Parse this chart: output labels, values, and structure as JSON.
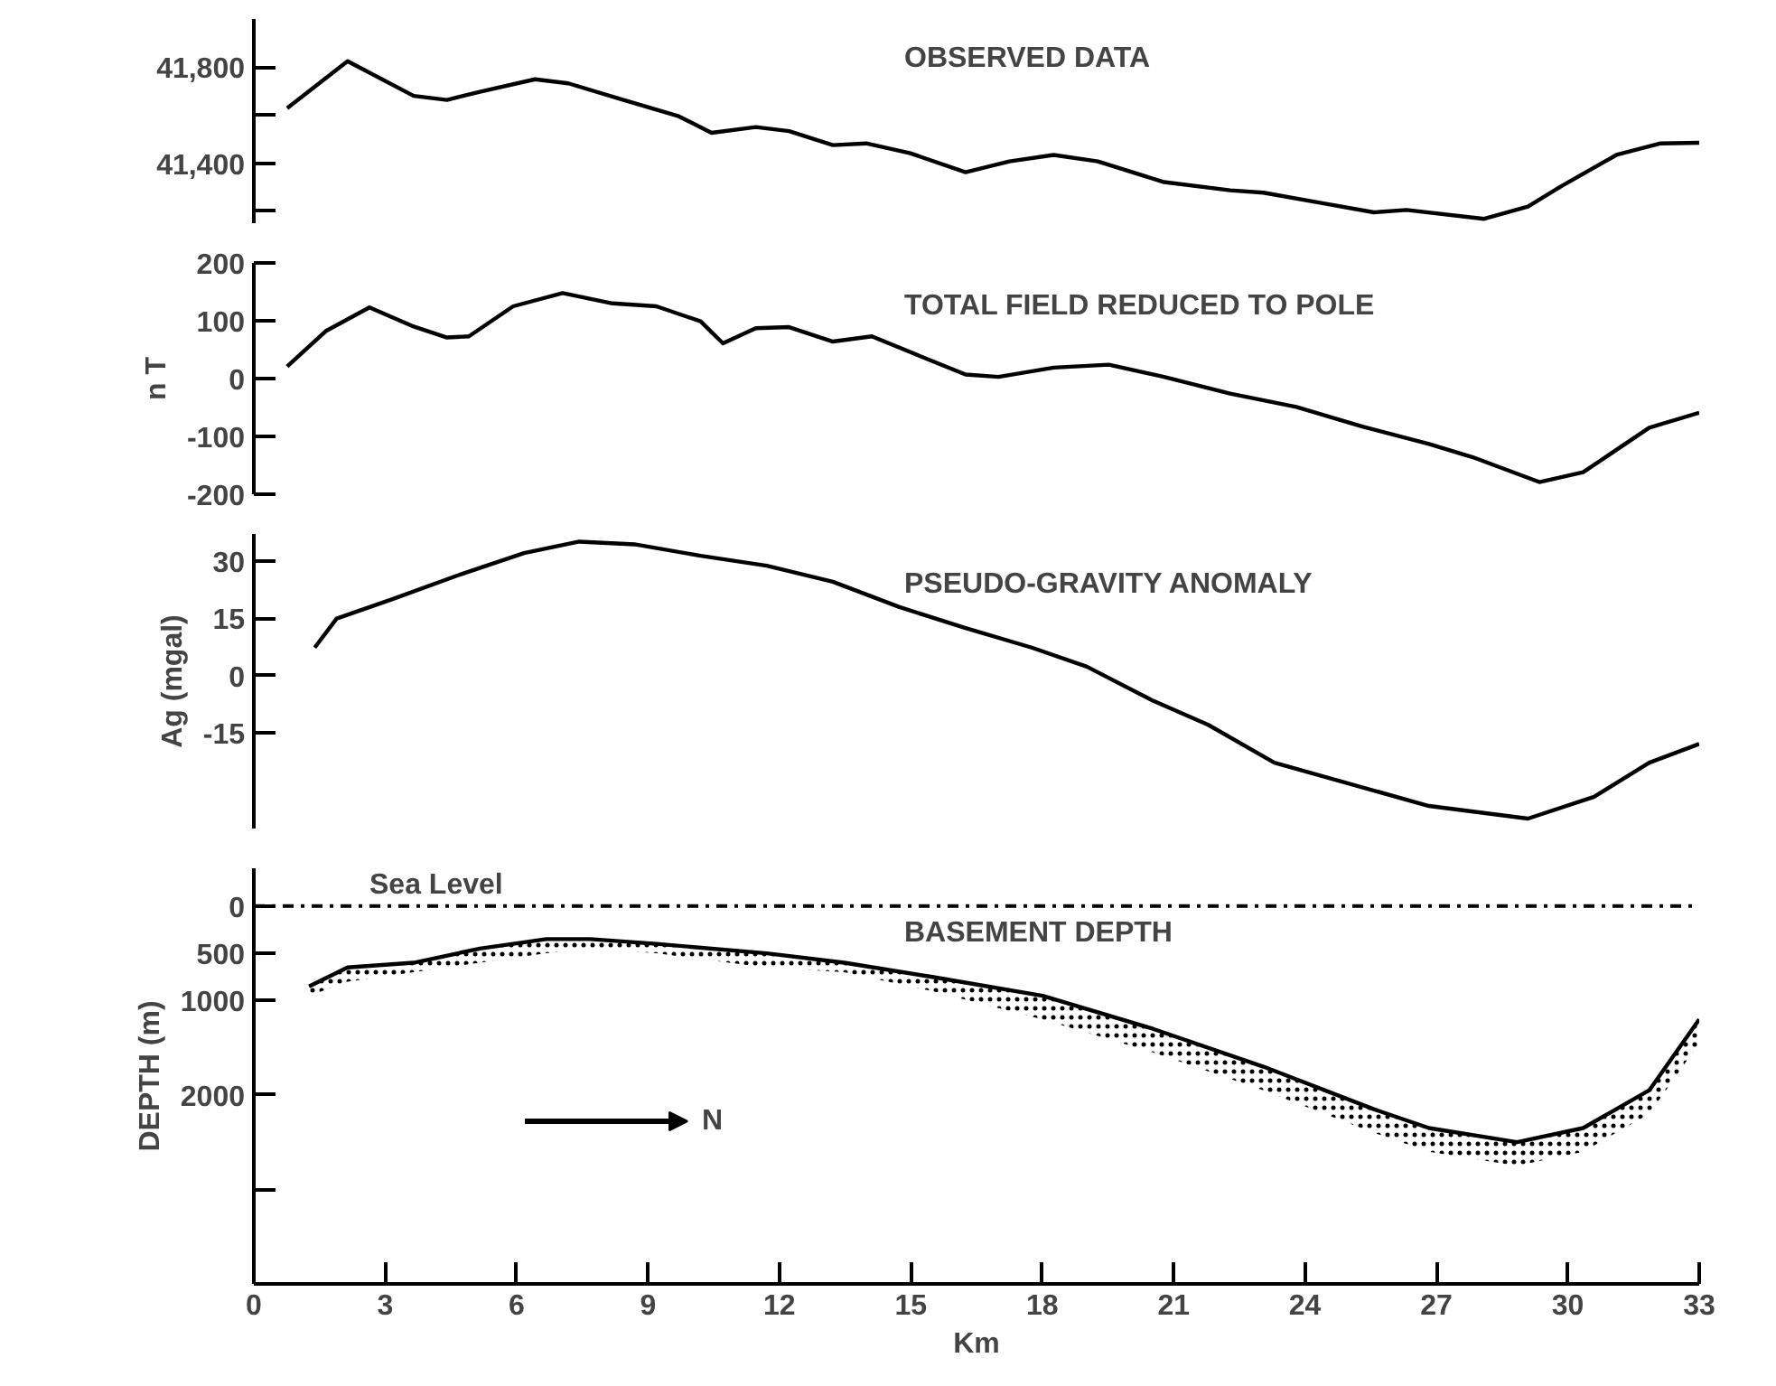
{
  "chart_data": [
    {
      "type": "line",
      "title": "OBSERVED DATA",
      "xlim": [
        0,
        33
      ],
      "xticks": [
        0,
        3,
        6,
        9,
        12,
        15,
        18,
        21,
        24,
        27,
        30,
        33
      ],
      "ylim": [
        41150,
        42000
      ],
      "yticks": [
        {
          "value": 41200,
          "label": null
        },
        {
          "value": 41400,
          "label": "41,400"
        },
        {
          "value": 41600,
          "label": null
        },
        {
          "value": 41800,
          "label": "41,800"
        }
      ],
      "tick_labels": "y",
      "grid": false,
      "series": [
        {
          "color": "#000000",
          "x": [
            0.76,
            2.14,
            3.65,
            4.41,
            5.16,
            6.42,
            7.18,
            8.44,
            9.7,
            10.45,
            11.46,
            12.22,
            13.22,
            13.98,
            14.99,
            16.25,
            17.25,
            18.26,
            19.27,
            20.78,
            22.29,
            23.05,
            24.31,
            25.57,
            26.32,
            28.09,
            29.09,
            29.85,
            31.11,
            32.12,
            33.0
          ],
          "values": [
            41629,
            41824,
            41680,
            41663,
            41697,
            41749,
            41732,
            41663,
            41595,
            41526,
            41550,
            41533,
            41475,
            41482,
            41441,
            41362,
            41407,
            41434,
            41407,
            41321,
            41287,
            41277,
            41236,
            41195,
            41205,
            41168,
            41219,
            41304,
            41434,
            41482,
            41485
          ]
        }
      ]
    },
    {
      "type": "line",
      "title": "TOTAL FIELD REDUCED TO POLE",
      "ylabel": "n T",
      "xlim": [
        0,
        33
      ],
      "xticks": [
        0,
        3,
        6,
        9,
        12,
        15,
        18,
        21,
        24,
        27,
        30,
        33
      ],
      "ylim": [
        -200,
        200
      ],
      "yticks": [
        -200,
        -100,
        0,
        100,
        200
      ],
      "tick_labels": "y",
      "grid": false,
      "series": [
        {
          "color": "#000000",
          "x": [
            0.76,
            1.64,
            2.64,
            3.65,
            4.41,
            4.91,
            5.92,
            7.05,
            8.19,
            9.19,
            10.2,
            10.71,
            11.46,
            12.22,
            13.22,
            14.11,
            15.24,
            16.25,
            17.0,
            18.26,
            19.52,
            20.78,
            22.29,
            23.8,
            25.31,
            26.83,
            27.83,
            29.35,
            30.35,
            31.86,
            33.0
          ],
          "values": [
            21,
            82,
            123,
            90,
            71,
            73,
            125,
            148,
            130,
            125,
            99,
            61,
            87,
            89,
            64,
            73,
            38,
            7,
            3,
            19,
            24,
            3,
            -26,
            -49,
            -83,
            -113,
            -136,
            -179,
            -162,
            -85,
            -59
          ]
        }
      ]
    },
    {
      "type": "line",
      "title": "PSEUDO-GRAVITY ANOMALY",
      "ylabel": "Ag (mgal)",
      "xlim": [
        0,
        33
      ],
      "xticks": [
        0,
        3,
        6,
        9,
        12,
        15,
        18,
        21,
        24,
        27,
        30,
        33
      ],
      "ylim": [
        -40,
        37
      ],
      "yticks": [
        -15,
        0,
        15,
        30
      ],
      "tick_labels": "y",
      "grid": false,
      "series": [
        {
          "color": "#000000",
          "x": [
            1.39,
            1.89,
            3.15,
            4.66,
            6.17,
            7.43,
            8.69,
            10.2,
            11.71,
            13.22,
            14.74,
            16.25,
            17.76,
            19.02,
            20.53,
            21.79,
            23.3,
            26.83,
            29.09,
            30.6,
            31.86,
            33.0
          ],
          "values": [
            7.3,
            14.9,
            19.9,
            26.2,
            32.0,
            35.0,
            34.3,
            31.3,
            28.7,
            24.5,
            17.9,
            12.4,
            7.3,
            2.3,
            -6.6,
            -12.9,
            -22.8,
            -34.1,
            -37.4,
            -31.7,
            -22.8,
            -17.9
          ]
        }
      ]
    },
    {
      "type": "line",
      "title": "BASEMENT DEPTH",
      "ylabel": "DEPTH (m)",
      "xlabel": "Km",
      "xlim": [
        0,
        33
      ],
      "xticks": [
        0,
        3,
        6,
        9,
        12,
        15,
        18,
        21,
        24,
        27,
        30,
        33
      ],
      "ylim": [
        4000,
        -400
      ],
      "yticks": [
        0,
        500,
        1000,
        2000,
        {
          "value": 3000,
          "label": null
        }
      ],
      "grid": false,
      "ref_lines": [
        {
          "axis": "y",
          "value": 0,
          "label": "Sea Level",
          "line_style": "dashdot",
          "color": "#000000"
        }
      ],
      "annotations": [
        "N"
      ],
      "series": [
        {
          "color": "#000000",
          "x": [
            1.26,
            2.14,
            3.65,
            5.16,
            6.68,
            7.68,
            9.19,
            11.71,
            13.48,
            15.49,
            18.01,
            20.53,
            23.05,
            25.57,
            26.83,
            28.84,
            30.35,
            31.86,
            33.0
          ],
          "values": [
            850,
            650,
            600,
            450,
            350,
            350,
            400,
            500,
            600,
            750,
            950,
            1300,
            1700,
            2150,
            2350,
            2500,
            2350,
            1950,
            1200
          ],
          "lower": [
            850,
            650,
            600,
            450,
            350,
            350,
            400,
            500,
            600,
            750,
            950,
            1300,
            1700,
            2150,
            2350,
            2500,
            2350,
            1950,
            1200
          ],
          "upper": [
            950,
            800,
            700,
            600,
            500,
            450,
            500,
            650,
            700,
            900,
            1200,
            1550,
            1950,
            2400,
            2600,
            2750,
            2600,
            2200,
            1450
          ]
        }
      ]
    }
  ]
}
